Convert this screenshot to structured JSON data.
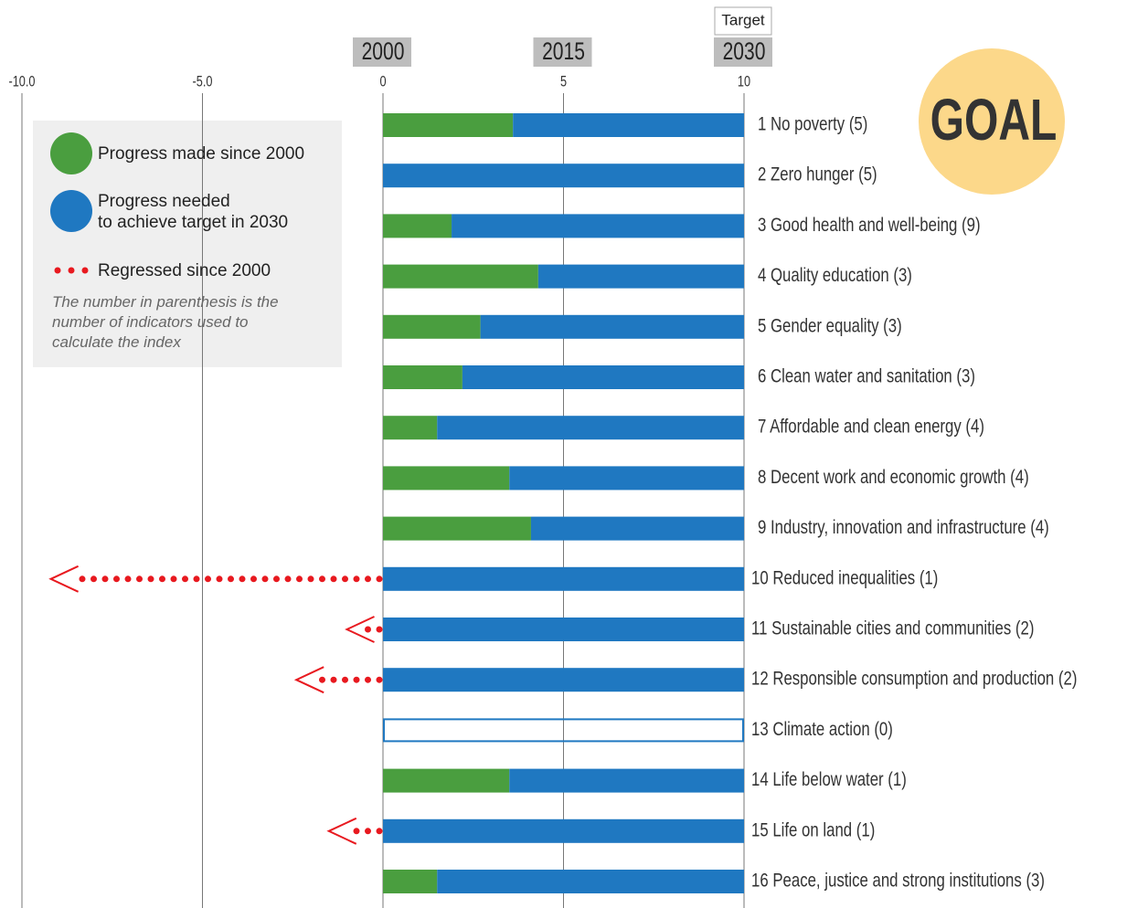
{
  "chart_data": {
    "type": "bar",
    "stacked": true,
    "orientation": "horizontal",
    "header_labels": [
      {
        "value": 0,
        "label": "2000"
      },
      {
        "value": 5,
        "label": "2015"
      },
      {
        "value": 10,
        "label": "2030"
      }
    ],
    "target_label": "Target",
    "badge": "GOAL",
    "note": "The number in parenthesis is the number of indicators used to calculate the index",
    "categories": [
      "1 No poverty (5)",
      "2 Zero hunger (5)",
      "3 Good health and well-being  (9)",
      "4 Quality education (3)",
      "5 Gender equality (3)",
      "6 Clean water and sanitation (3)",
      "7 Affordable and clean energy (4)",
      "8 Decent work and economic growth (4)",
      "9 Industry, innovation and infrastructure (4)",
      "10 Reduced inequalities (1)",
      "11 Sustainable cities and communities (2)",
      "12 Responsible consumption and production (2)",
      "13 Climate action (0)",
      "14 Life below water (1)",
      "15 Life on land (1)",
      "16 Peace, justice and strong institutions (3)"
    ],
    "series": [
      {
        "name": "Progress made since 2000",
        "color": "#4a9e3f",
        "values": [
          3.6,
          0,
          1.9,
          4.3,
          2.7,
          2.2,
          1.5,
          3.5,
          4.1,
          0,
          0,
          0,
          null,
          3.5,
          0,
          1.5
        ]
      },
      {
        "name": "Progress needed\nto achieve target in 2030",
        "color": "#1f78c1",
        "values": [
          6.4,
          10,
          8.1,
          5.7,
          7.3,
          7.8,
          8.5,
          6.5,
          5.9,
          10,
          10,
          10,
          null,
          6.5,
          10,
          8.5
        ]
      },
      {
        "name": "Regressed since 2000",
        "color": "#e8191f",
        "values": [
          null,
          null,
          null,
          null,
          null,
          null,
          null,
          null,
          null,
          -9.2,
          -1.0,
          -2.4,
          null,
          null,
          -1.5,
          null
        ]
      }
    ],
    "xlim": [
      -10,
      10
    ],
    "xticks": [
      {
        "value": -10,
        "label": "-10.0"
      },
      {
        "value": -5,
        "label": "-5.0"
      },
      0,
      5,
      10
    ],
    "grid": true
  }
}
